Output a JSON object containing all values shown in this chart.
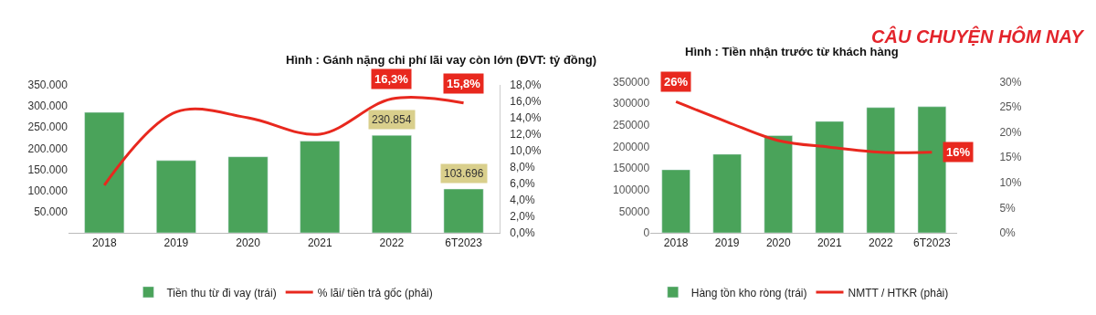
{
  "chart_data": [
    {
      "type": "bar",
      "title": "Hình : Gánh nặng chi phí lãi vay còn lớn (ĐVT: tỷ đồng)",
      "categories": [
        "2018",
        "2019",
        "2020",
        "2021",
        "2022",
        "6T2023"
      ],
      "series": [
        {
          "name": "Tiền thu từ đi vay (trái)",
          "color": "#4aa35a",
          "values": [
            285000,
            171000,
            180000,
            217000,
            230854,
            103696
          ],
          "value_labels": [
            null,
            null,
            null,
            null,
            "230.854",
            "103.696"
          ]
        },
        {
          "name": "% lãi/ tiền trả gốc (phải)",
          "type": "line",
          "axis": "y2",
          "color": "#e8281e",
          "values": [
            5.8,
            14.7,
            14.0,
            12.0,
            16.3,
            15.8
          ],
          "value_labels": [
            null,
            null,
            null,
            null,
            "16,3%",
            "15,8%"
          ]
        }
      ],
      "ylim": [
        0,
        350000
      ],
      "yticks": [
        {
          "value": 0,
          "label": null
        },
        {
          "value": 50000,
          "label": "50.000"
        },
        {
          "value": 100000,
          "label": "100.000"
        },
        {
          "value": 150000,
          "label": "150.000"
        },
        {
          "value": 200000,
          "label": "200.000"
        },
        {
          "value": 250000,
          "label": "250.000"
        },
        {
          "value": 300000,
          "label": "300.000"
        },
        {
          "value": 350000,
          "label": "350.000"
        }
      ],
      "y2lim": [
        0,
        18
      ],
      "y2ticks": [
        {
          "value": 0,
          "label": "0,0%"
        },
        {
          "value": 2,
          "label": "2,0%"
        },
        {
          "value": 4,
          "label": "4,0%"
        },
        {
          "value": 6,
          "label": "6,0%"
        },
        {
          "value": 8,
          "label": "8,0%"
        },
        {
          "value": 10,
          "label": "10,0%"
        },
        {
          "value": 12,
          "label": "12,0%"
        },
        {
          "value": 14,
          "label": "14,0%"
        },
        {
          "value": 16,
          "label": "16,0%"
        },
        {
          "value": 18,
          "label": "18,0%"
        }
      ],
      "legend": "bottom",
      "marker": "none"
    },
    {
      "type": "bar",
      "title": "Hình : Tiền nhận trước từ khách hàng",
      "annotations": [
        "CÂU CHUYỆN HÔM NAY"
      ],
      "categories": [
        "2018",
        "2019",
        "2020",
        "2021",
        "2022",
        "6T2023"
      ],
      "series": [
        {
          "name": "Hàng tồn kho ròng (trái)",
          "color": "#4aa35a",
          "values": [
            146000,
            182000,
            225000,
            258000,
            290000,
            292000
          ]
        },
        {
          "name": "NMTT / HTKR (phải)",
          "type": "line",
          "axis": "y2",
          "color": "#e8281e",
          "values": [
            26,
            22,
            18.3,
            17,
            16,
            16
          ],
          "value_labels": [
            "26%",
            null,
            null,
            null,
            null,
            "16%"
          ]
        }
      ],
      "ylim": [
        0,
        350000
      ],
      "yticks": [
        0,
        50000,
        100000,
        150000,
        200000,
        250000,
        300000,
        350000
      ],
      "y2lim": [
        0,
        30
      ],
      "y2ticks": [
        {
          "value": 0,
          "label": "0%"
        },
        {
          "value": 5,
          "label": "5%"
        },
        {
          "value": 10,
          "label": "10%"
        },
        {
          "value": 15,
          "label": "15%"
        },
        {
          "value": 20,
          "label": "20%"
        },
        {
          "value": 25,
          "label": "25%"
        },
        {
          "value": 30,
          "label": "30%"
        }
      ],
      "legend": "bottom",
      "marker": "none"
    }
  ]
}
